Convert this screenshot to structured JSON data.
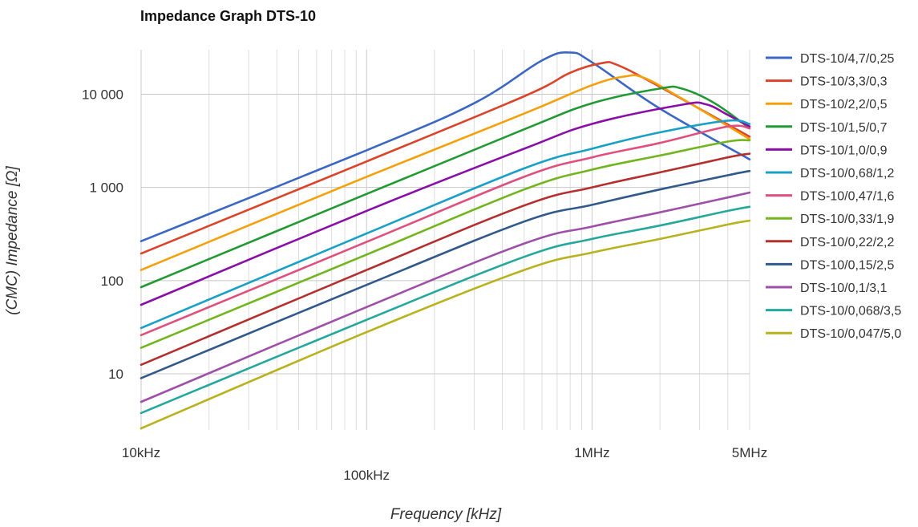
{
  "chart_data": {
    "type": "line",
    "title": "Impedance Graph DTS-10",
    "xlabel": "Frequency [kHz]",
    "ylabel": "(CMC) Impedance [Ω]",
    "x_scale": "log",
    "y_scale": "log",
    "xlim": [
      10,
      5000
    ],
    "ylim": [
      2.5,
      30000
    ],
    "x_tick_labels": [
      "10kHz",
      "100kHz",
      "1MHz",
      "5MHz"
    ],
    "y_tick_labels": [
      "10",
      "100",
      "1 000",
      "10 000"
    ],
    "grid": true,
    "legend_position": "right",
    "series": [
      {
        "name": "DTS-10/4,7/0,25",
        "color": "#3b66c4",
        "x": [
          10,
          100,
          300,
          600,
          800,
          1000,
          2000,
          5000
        ],
        "y": [
          265,
          2500,
          8000,
          23000,
          28000,
          22000,
          7000,
          2000
        ]
      },
      {
        "name": "DTS-10/3,3/0,3",
        "color": "#d9442b",
        "x": [
          10,
          100,
          500,
          800,
          1100,
          1300,
          2000,
          5000
        ],
        "y": [
          195,
          1900,
          9500,
          17000,
          21500,
          20500,
          12000,
          3500
        ]
      },
      {
        "name": "DTS-10/2,2/0,5",
        "color": "#f59f0b",
        "x": [
          10,
          100,
          500,
          1000,
          1400,
          1700,
          2500,
          5000
        ],
        "y": [
          130,
          1300,
          6200,
          12500,
          15500,
          15000,
          9000,
          3300
        ]
      },
      {
        "name": "DTS-10/1,5/0,7",
        "color": "#229a34",
        "x": [
          10,
          100,
          500,
          1000,
          2000,
          2500,
          3500,
          5000
        ],
        "y": [
          85,
          850,
          4200,
          8000,
          11500,
          11500,
          8000,
          4300
        ]
      },
      {
        "name": "DTS-10/1,0/0,9",
        "color": "#8a0fa6",
        "x": [
          10,
          100,
          500,
          1000,
          2500,
          3200,
          4000,
          5000
        ],
        "y": [
          55,
          560,
          2600,
          4800,
          7700,
          7800,
          6000,
          4500
        ]
      },
      {
        "name": "DTS-10/0,68/1,2",
        "color": "#1aa0c6",
        "x": [
          10,
          100,
          500,
          1000,
          2000,
          4000,
          5000
        ],
        "y": [
          31,
          320,
          1600,
          2600,
          3900,
          5200,
          4800
        ]
      },
      {
        "name": "DTS-10/0,47/1,6",
        "color": "#e0507d",
        "x": [
          10,
          100,
          500,
          1000,
          2000,
          4000,
          5000
        ],
        "y": [
          26,
          260,
          1300,
          2100,
          3000,
          4500,
          4300
        ]
      },
      {
        "name": "DTS-10/0,33/1,9",
        "color": "#72b51e",
        "x": [
          10,
          100,
          500,
          1000,
          2000,
          4000,
          5000
        ],
        "y": [
          19,
          190,
          950,
          1550,
          2200,
          3100,
          3200
        ]
      },
      {
        "name": "DTS-10/0,22/2,2",
        "color": "#b3302e",
        "x": [
          10,
          100,
          500,
          1000,
          2000,
          4000,
          5000
        ],
        "y": [
          12.5,
          130,
          640,
          1000,
          1450,
          2100,
          2300
        ]
      },
      {
        "name": "DTS-10/0,15/2,5",
        "color": "#31598b",
        "x": [
          10,
          100,
          500,
          1000,
          2000,
          4000,
          5000
        ],
        "y": [
          9,
          90,
          430,
          650,
          950,
          1350,
          1500
        ]
      },
      {
        "name": "DTS-10/0,1/3,1",
        "color": "#9e4fa8",
        "x": [
          10,
          100,
          500,
          1000,
          2000,
          4000,
          5000
        ],
        "y": [
          5,
          52,
          250,
          380,
          540,
          780,
          880
        ]
      },
      {
        "name": "DTS-10/0,068/3,5",
        "color": "#25a89c",
        "x": [
          10,
          100,
          500,
          1000,
          2000,
          4000,
          5000
        ],
        "y": [
          3.8,
          38,
          180,
          280,
          390,
          560,
          620
        ]
      },
      {
        "name": "DTS-10/0,047/5,0",
        "color": "#b8b21e",
        "x": [
          10,
          100,
          500,
          1000,
          2000,
          4000,
          5000
        ],
        "y": [
          2.6,
          28,
          130,
          200,
          280,
          400,
          440
        ]
      }
    ]
  }
}
